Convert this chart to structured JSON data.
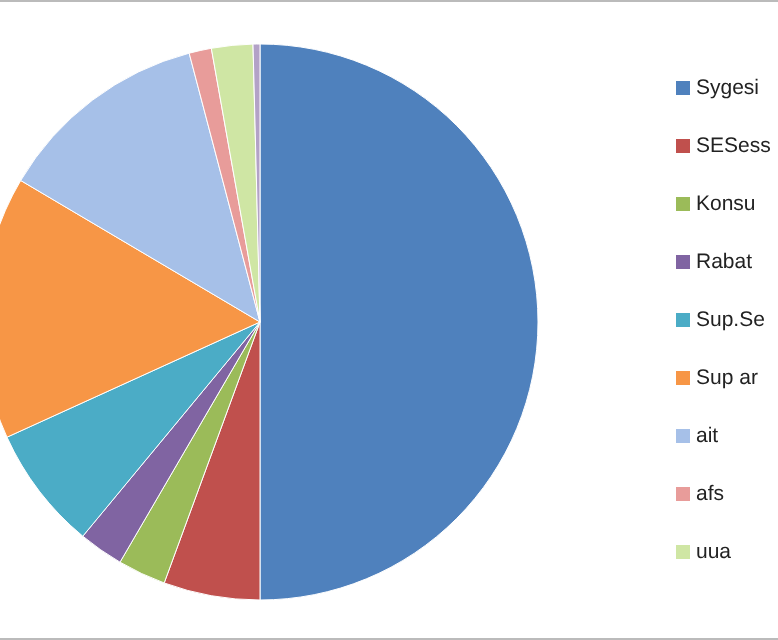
{
  "chart_data": {
    "type": "pie",
    "categories": [
      "Sygesi",
      "SESess",
      "Konsu",
      "Rabat",
      "Sup.Se",
      "Sup ar",
      "ait",
      "afs",
      "uua",
      null
    ],
    "values": [
      50,
      5.6,
      2.8,
      2.6,
      7.2,
      15.3,
      12.4,
      1.3,
      2.4,
      0.4
    ],
    "colors": [
      "#4f81bd",
      "#c0504d",
      "#9bbb59",
      "#8064a2",
      "#4bacc6",
      "#f79646",
      "#a6c0e8",
      "#e89c9a",
      "#cfe6a4",
      "#b3a2c7"
    ],
    "legend": "right"
  }
}
